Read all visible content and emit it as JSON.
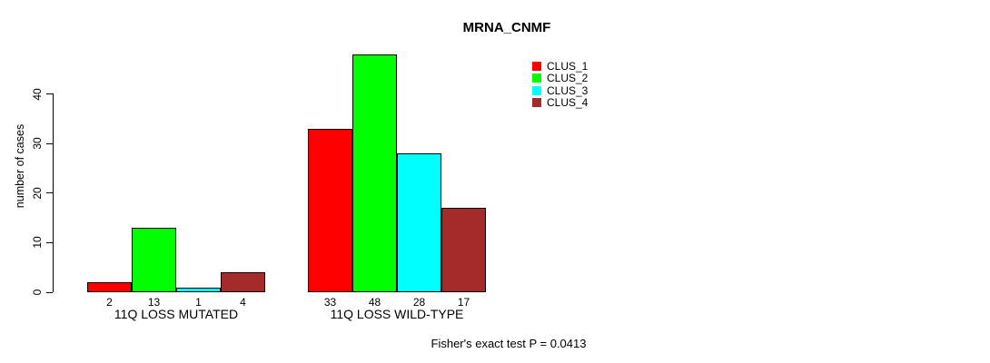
{
  "title": "MRNA_CNMF",
  "chart_data": {
    "type": "bar",
    "title": "MRNA_CNMF",
    "xlabel": "",
    "ylabel": "number of cases",
    "ylim": [
      0,
      49
    ],
    "yticks": [
      0,
      10,
      20,
      30,
      40
    ],
    "grid": false,
    "legend_position": "top-right",
    "categories": [
      "11Q LOSS MUTATED",
      "11Q LOSS WILD-TYPE"
    ],
    "series": [
      {
        "name": "CLUS_1",
        "color": "#ff0000",
        "values": [
          2,
          33
        ]
      },
      {
        "name": "CLUS_2",
        "color": "#00ff00",
        "values": [
          13,
          48
        ]
      },
      {
        "name": "CLUS_3",
        "color": "#00ffff",
        "values": [
          1,
          28
        ]
      },
      {
        "name": "CLUS_4",
        "color": "#a52a2a",
        "values": [
          4,
          17
        ]
      }
    ],
    "bar_value_labels": [
      [
        2,
        13,
        1,
        4
      ],
      [
        33,
        48,
        28,
        17
      ]
    ],
    "annotation": "Fisher's exact test P = 0.0413"
  }
}
